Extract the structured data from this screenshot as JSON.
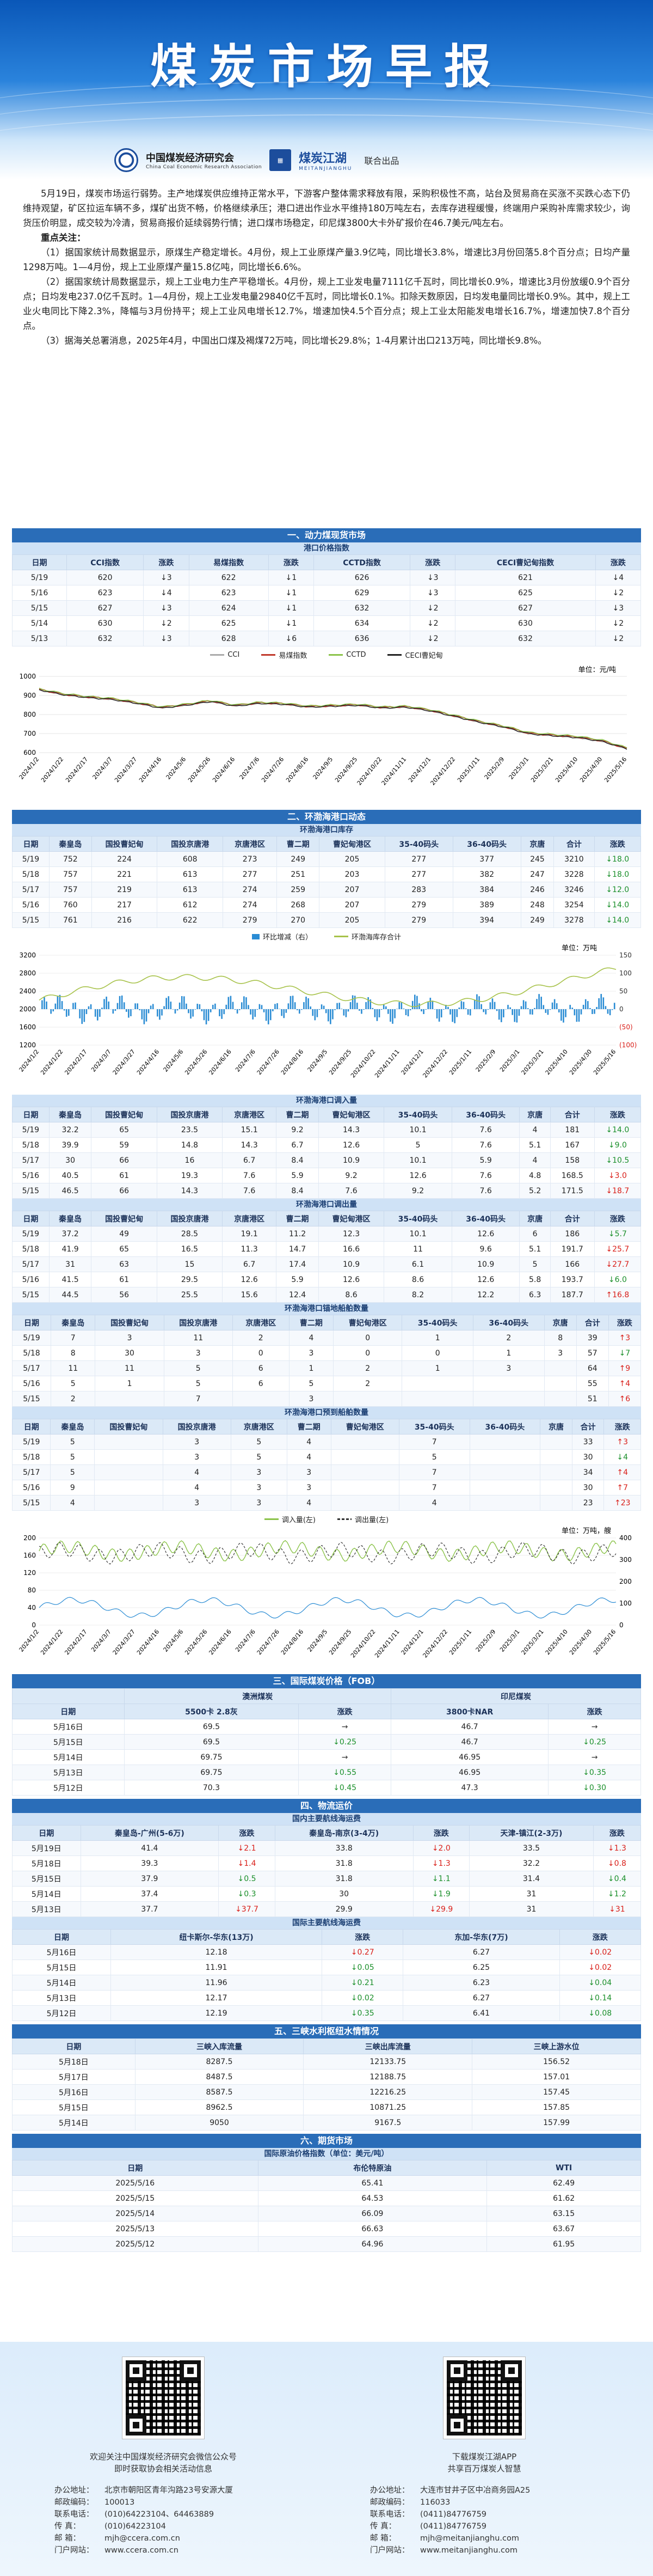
{
  "header": {
    "title": "煤炭市场早报",
    "org1_cn": "中国煤炭经济研究会",
    "org1_en": "China Coal Economic Research Association",
    "org2_cn": "煤炭江湖",
    "org2_en": "MEITANJIANGHU",
    "joint": "联合出品"
  },
  "summary": {
    "p1": "5月19日，煤炭市场运行弱势。主产地煤炭供应维持正常水平，下游客户整体需求释放有限，采购积极性不高，站台及贸易商在买涨不买跌心态下仍维持观望，矿区拉运车辆不多，煤矿出货不畅，价格继续承压；港口进出作业水平维持180万吨左右，去库存进程缓慢，终端用户采购补库需求较少，询货压价明显，成交较为冷清，贸易商报价延续弱势行情；进口煤市场稳定，印尼煤3800大卡外矿报价在46.7美元/吨左右。",
    "p2": "重点关注：",
    "p3": "（1）据国家统计局数据显示，原煤生产稳定增长。4月份，规上工业原煤产量3.9亿吨，同比增长3.8%，增速比3月份回落5.8个百分点；日均产量1298万吨。1—4月份，规上工业原煤产量15.8亿吨，同比增长6.6%。",
    "p4": "（2）据国家统计局数据显示，规上工业电力生产平稳增长。4月份，规上工业发电量7111亿千瓦时，同比增长0.9%，增速比3月份放缓0.9个百分点；日均发电237.0亿千瓦时。1—4月份，规上工业发电量29840亿千瓦时，同比增长0.1%。扣除天数原因，日均发电量同比增长0.9%。其中，规上工业火电同比下降2.3%，降幅与3月份持平；规上工业风电增长12.7%，增速加快4.5个百分点；规上工业太阳能发电增长16.7%，增速加快7.8个百分点。",
    "p5": "（3）据海关总署消息，2025年4月，中国出口煤及褐煤72万吨，同比增长29.8%；1-4月累计出口213万吨，同比增长9.8%。"
  },
  "s1": {
    "title": "一、动力煤现货市场",
    "sub": "港口价格指数",
    "cols": [
      "日期",
      "CCI指数",
      "涨跌",
      "易煤指数",
      "涨跌",
      "CCTD指数",
      "涨跌",
      "CECI曹妃甸指数",
      "涨跌"
    ],
    "rows": [
      [
        "5/19",
        "620",
        "↓3",
        "622",
        "↓1",
        "626",
        "↓3",
        "621",
        "↓4"
      ],
      [
        "5/16",
        "623",
        "↓4",
        "623",
        "↓1",
        "629",
        "↓3",
        "625",
        "↓2"
      ],
      [
        "5/15",
        "627",
        "↓3",
        "624",
        "↓1",
        "632",
        "↓2",
        "627",
        "↓3"
      ],
      [
        "5/14",
        "630",
        "↓2",
        "625",
        "↓1",
        "634",
        "↓2",
        "630",
        "↓2"
      ],
      [
        "5/13",
        "632",
        "↓3",
        "628",
        "↓6",
        "636",
        "↓2",
        "632",
        "↓2"
      ]
    ],
    "dirs": [
      [
        "dn",
        "dn",
        "dn",
        "dn"
      ],
      [
        "dn",
        "dn",
        "dn",
        "dn"
      ],
      [
        "dn",
        "dn",
        "dn",
        "dn"
      ],
      [
        "dn",
        "dn",
        "dn",
        "dn"
      ],
      [
        "dn",
        "dn",
        "dn",
        "dn"
      ]
    ]
  },
  "chart1": {
    "legend": [
      "CCI",
      "易煤指数",
      "CCTD",
      "CECI曹妃甸"
    ],
    "unit": "单位：元/吨",
    "colors": [
      "#aaaaaa",
      "#c0392b",
      "#8bc34a",
      "#222222"
    ],
    "yticks": [
      "1000",
      "900",
      "800",
      "700",
      "600"
    ],
    "xticks": [
      "2024/1/2",
      "2024/1/22",
      "2024/2/17",
      "2024/3/7",
      "2024/3/27",
      "2024/4/16",
      "2024/5/6",
      "2024/5/26",
      "2024/6/16",
      "2024/7/6",
      "2024/7/26",
      "2024/8/16",
      "2024/9/5",
      "2024/9/25",
      "2024/10/22",
      "2024/11/11",
      "2024/12/1",
      "2024/12/22",
      "2025/1/11",
      "2025/2/9",
      "2025/3/1",
      "2025/3/21",
      "2025/4/10",
      "2025/4/30",
      "2025/5/16"
    ]
  },
  "chart_data": {
    "type": "line",
    "title": "",
    "xlabel": "",
    "ylabel": "单位：元/吨",
    "ylim": [
      600,
      1000
    ],
    "series": [
      {
        "name": "CCI",
        "values": [
          930,
          905,
          890,
          880,
          860,
          835,
          850,
          870,
          845,
          860,
          855,
          840,
          845,
          850,
          835,
          840,
          820,
          790,
          760,
          735,
          700,
          690,
          680,
          660,
          620
        ]
      },
      {
        "name": "易煤指数",
        "values": [
          932,
          906,
          892,
          882,
          862,
          838,
          852,
          872,
          848,
          862,
          857,
          842,
          846,
          852,
          837,
          842,
          822,
          792,
          762,
          737,
          702,
          692,
          682,
          662,
          622
        ]
      },
      {
        "name": "CCTD",
        "values": [
          935,
          910,
          895,
          885,
          865,
          840,
          855,
          875,
          850,
          865,
          860,
          845,
          850,
          855,
          840,
          845,
          825,
          795,
          765,
          740,
          706,
          696,
          686,
          666,
          626
        ]
      },
      {
        "name": "CECI曹妃甸",
        "values": [
          930,
          904,
          889,
          879,
          859,
          834,
          849,
          869,
          844,
          859,
          854,
          839,
          844,
          849,
          834,
          839,
          819,
          789,
          759,
          734,
          699,
          689,
          679,
          659,
          621
        ]
      }
    ]
  },
  "s2": {
    "title": "二、环渤海港口动态",
    "sub": "环渤海港口库存",
    "cols": [
      "日期",
      "秦皇岛",
      "国投曹妃甸",
      "国投京唐港",
      "京唐港区",
      "曹二期",
      "曹妃甸港区",
      "35-40码头",
      "36-40码头",
      "京唐",
      "合计",
      "涨跌"
    ],
    "rows": [
      [
        "5/19",
        "752",
        "224",
        "608",
        "273",
        "249",
        "205",
        "277",
        "377",
        "245",
        "3210",
        "↓18.0"
      ],
      [
        "5/18",
        "757",
        "221",
        "613",
        "277",
        "251",
        "203",
        "277",
        "382",
        "247",
        "3228",
        "↓18.0"
      ],
      [
        "5/17",
        "757",
        "219",
        "613",
        "274",
        "259",
        "207",
        "283",
        "384",
        "246",
        "3246",
        "↓12.0"
      ],
      [
        "5/16",
        "760",
        "217",
        "612",
        "274",
        "268",
        "207",
        "279",
        "389",
        "248",
        "3254",
        "↓14.0"
      ],
      [
        "5/15",
        "761",
        "216",
        "622",
        "279",
        "270",
        "205",
        "279",
        "394",
        "249",
        "3278",
        "↓14.0"
      ]
    ],
    "dir": [
      "dn",
      "dn",
      "dn",
      "dn",
      "dn"
    ]
  },
  "chart2": {
    "legend": [
      "环比增减（右）",
      "环渤海库存合计"
    ],
    "unit": "单位：万吨",
    "lyt": [
      "3200",
      "2800",
      "2400",
      "2000",
      "1600",
      "1200"
    ],
    "ryt": [
      "150",
      "100",
      "50",
      "0",
      "(50)",
      "(100)"
    ]
  },
  "s3": {
    "title": "环渤海港口调入量",
    "cols": [
      "日期",
      "秦皇岛",
      "国投曹妃甸",
      "国投京唐港",
      "京唐港区",
      "曹二期",
      "曹妃甸港区",
      "35-40码头",
      "36-40码头",
      "京唐",
      "合计",
      "涨跌"
    ],
    "rows": [
      [
        "5/19",
        "32.2",
        "65",
        "23.5",
        "15.1",
        "9.2",
        "14.3",
        "10.1",
        "7.6",
        "4",
        "181",
        "↓14.0"
      ],
      [
        "5/18",
        "39.9",
        "59",
        "14.8",
        "14.3",
        "6.7",
        "12.6",
        "5",
        "7.6",
        "5.1",
        "167",
        "↓9.0"
      ],
      [
        "5/17",
        "30",
        "66",
        "16",
        "6.7",
        "8.4",
        "10.9",
        "10.1",
        "5.9",
        "4",
        "158",
        "↓10.5"
      ],
      [
        "5/16",
        "40.5",
        "61",
        "19.3",
        "7.6",
        "5.9",
        "9.2",
        "12.6",
        "7.6",
        "4.8",
        "168.5",
        "↓3.0"
      ],
      [
        "5/15",
        "46.5",
        "66",
        "14.3",
        "7.6",
        "8.4",
        "7.6",
        "9.2",
        "7.6",
        "5.2",
        "171.5",
        "↓18.7"
      ]
    ],
    "dir": [
      "dn",
      "dn",
      "dn",
      "up",
      "up"
    ]
  },
  "s4": {
    "title": "环渤海港口调出量",
    "cols": [
      "日期",
      "秦皇岛",
      "国投曹妃甸",
      "国投京唐港",
      "京唐港区",
      "曹二期",
      "曹妃甸港区",
      "35-40码头",
      "36-40码头",
      "京唐",
      "合计",
      "涨跌"
    ],
    "rows": [
      [
        "5/19",
        "37.2",
        "49",
        "28.5",
        "19.1",
        "11.2",
        "12.3",
        "10.1",
        "12.6",
        "6",
        "186",
        "↓5.7"
      ],
      [
        "5/18",
        "41.9",
        "65",
        "16.5",
        "11.3",
        "14.7",
        "16.6",
        "11",
        "9.6",
        "5.1",
        "191.7",
        "↓25.7"
      ],
      [
        "5/17",
        "31",
        "63",
        "15",
        "6.7",
        "17.4",
        "10.9",
        "6.1",
        "10.9",
        "5",
        "166",
        "↓27.7"
      ],
      [
        "5/16",
        "41.5",
        "61",
        "29.5",
        "12.6",
        "5.9",
        "12.6",
        "8.6",
        "12.6",
        "5.8",
        "193.7",
        "↓6.0"
      ],
      [
        "5/15",
        "44.5",
        "56",
        "25.5",
        "15.6",
        "12.4",
        "8.6",
        "8.2",
        "12.2",
        "6.3",
        "187.7",
        "↑16.8"
      ]
    ],
    "dir": [
      "dn",
      "up",
      "up",
      "dn",
      "up"
    ]
  },
  "s5": {
    "title": "环渤海港口锚地船舶数量",
    "cols": [
      "日期",
      "秦皇岛",
      "国投曹妃甸",
      "国投京唐港",
      "京唐港区",
      "曹二期",
      "曹妃甸港区",
      "35-40码头",
      "36-40码头",
      "京唐",
      "合计",
      "涨跌"
    ],
    "rows": [
      [
        "5/19",
        "7",
        "3",
        "11",
        "2",
        "4",
        "0",
        "1",
        "2",
        "8",
        "39",
        "↑3"
      ],
      [
        "5/18",
        "8",
        "30",
        "3",
        "0",
        "3",
        "0",
        "0",
        "1",
        "3",
        "57",
        "↓7"
      ],
      [
        "5/17",
        "11",
        "11",
        "5",
        "6",
        "1",
        "2",
        "1",
        "3",
        "",
        "64",
        "↑9"
      ],
      [
        "5/16",
        "5",
        "1",
        "5",
        "6",
        "5",
        "2",
        "",
        "",
        "",
        "55",
        "↑4"
      ],
      [
        "5/15",
        "2",
        "",
        "7",
        "",
        "3",
        "",
        "",
        "",
        "",
        "51",
        "↑6"
      ]
    ],
    "dir": [
      "up",
      "dn",
      "up",
      "up",
      "up"
    ]
  },
  "s6": {
    "title": "环渤海港口预到船舶数量",
    "cols": [
      "日期",
      "秦皇岛",
      "国投曹妃甸",
      "国投京唐港",
      "京唐港区",
      "曹二期",
      "曹妃甸港区",
      "35-40码头",
      "36-40码头",
      "京唐",
      "合计",
      "涨跌"
    ],
    "rows": [
      [
        "5/19",
        "5",
        "",
        "3",
        "5",
        "4",
        "",
        "7",
        "",
        "",
        "33",
        "↑3"
      ],
      [
        "5/18",
        "5",
        "",
        "3",
        "5",
        "4",
        "",
        "5",
        "",
        "",
        "30",
        "↓4"
      ],
      [
        "5/17",
        "5",
        "",
        "4",
        "3",
        "3",
        "",
        "7",
        "",
        "",
        "34",
        "↑4"
      ],
      [
        "5/16",
        "9",
        "",
        "4",
        "3",
        "3",
        "",
        "7",
        "",
        "",
        "30",
        "↑7"
      ],
      [
        "5/15",
        "4",
        "",
        "3",
        "3",
        "4",
        "",
        "4",
        "",
        "",
        "23",
        "↑23"
      ]
    ],
    "dir": [
      "up",
      "dn",
      "up",
      "up",
      "up"
    ]
  },
  "chart3": {
    "legend": [
      "调入量(左)",
      "调出量(左)"
    ],
    "unit": "单位：万吨，艘",
    "lyt": [
      "200",
      "160",
      "120",
      "80",
      "40",
      "0"
    ],
    "ryt": [
      "400",
      "300",
      "200",
      "100",
      "0"
    ]
  },
  "s7": {
    "title": "三、国际煤炭价格（FOB）",
    "gh1": "澳洲煤炭",
    "gh2": "印尼煤炭",
    "cols": [
      "日期",
      "5500卡 2.8灰",
      "涨跌",
      "3800卡NAR",
      "涨跌"
    ],
    "rows": [
      [
        "5月16日",
        "69.5",
        "→",
        "46.7",
        "→"
      ],
      [
        "5月15日",
        "69.5",
        "↓0.25",
        "46.7",
        "↓0.25"
      ],
      [
        "5月14日",
        "69.75",
        "→",
        "46.95",
        "→"
      ],
      [
        "5月13日",
        "69.75",
        "↓0.55",
        "46.95",
        "↓0.35"
      ],
      [
        "5月12日",
        "70.3",
        "↓0.45",
        "47.3",
        "↓0.30"
      ]
    ],
    "dir": [
      [
        "fl",
        "fl"
      ],
      [
        "dn",
        "dn"
      ],
      [
        "fl",
        "fl"
      ],
      [
        "dn",
        "dn"
      ],
      [
        "dn",
        "dn"
      ]
    ]
  },
  "s8": {
    "title": "四、物流运价",
    "sub": "国内主要航线海运费",
    "cols": [
      "日期",
      "秦皇岛-广州(5-6万)",
      "涨跌",
      "秦皇岛-南京(3-4万)",
      "涨跌",
      "天津-镇江(2-3万)",
      "涨跌"
    ],
    "rows": [
      [
        "5月19日",
        "41.4",
        "↓2.1",
        "33.8",
        "↓2.0",
        "33.5",
        "↓1.3"
      ],
      [
        "5月18日",
        "39.3",
        "↓1.4",
        "31.8",
        "↓1.3",
        "32.2",
        "↓0.8"
      ],
      [
        "5月15日",
        "37.9",
        "↓0.5",
        "31.8",
        "↓1.1",
        "31.4",
        "↓0.4"
      ],
      [
        "5月14日",
        "37.4",
        "↓0.3",
        "30",
        "↓1.9",
        "31",
        "↓1.2"
      ],
      [
        "5月13日",
        "37.7",
        "↓37.7",
        "29.9",
        "↓29.9",
        "31",
        "↓31"
      ]
    ],
    "dir": [
      [
        "up",
        "up",
        "up"
      ],
      [
        "up",
        "up",
        "up"
      ],
      [
        "dn",
        "dn",
        "dn"
      ],
      [
        "dn",
        "dn",
        "dn"
      ],
      [
        "up",
        "up",
        "up"
      ]
    ]
  },
  "s9": {
    "title": "国际主要航线海运费",
    "cols": [
      "日期",
      "纽卡斯尔-华东(13万)",
      "涨跌",
      "东加-华东(7万)",
      "涨跌"
    ],
    "rows": [
      [
        "5月16日",
        "12.18",
        "↓0.27",
        "6.27",
        "↓0.02"
      ],
      [
        "5月15日",
        "11.91",
        "↓0.05",
        "6.25",
        "↓0.02"
      ],
      [
        "5月14日",
        "11.96",
        "↓0.21",
        "6.23",
        "↓0.04"
      ],
      [
        "5月13日",
        "12.17",
        "↓0.02",
        "6.27",
        "↓0.14"
      ],
      [
        "5月12日",
        "12.19",
        "↓0.35",
        "6.41",
        "↓0.08"
      ]
    ],
    "dir": [
      [
        "up",
        "up"
      ],
      [
        "dn",
        "up"
      ],
      [
        "dn",
        "dn"
      ],
      [
        "dn",
        "dn"
      ],
      [
        "dn",
        "dn"
      ]
    ]
  },
  "s10": {
    "title": "五、三峡水利枢纽水情情况",
    "cols": [
      "日期",
      "三峡入库流量",
      "三峡出库流量",
      "三峡上游水位"
    ],
    "rows": [
      [
        "5月18日",
        "8287.5",
        "12133.75",
        "156.52"
      ],
      [
        "5月17日",
        "8487.5",
        "12188.75",
        "157.01"
      ],
      [
        "5月16日",
        "8587.5",
        "12216.25",
        "157.45"
      ],
      [
        "5月15日",
        "8962.5",
        "10871.25",
        "157.85"
      ],
      [
        "5月14日",
        "9050",
        "9167.5",
        "157.99"
      ]
    ]
  },
  "s11": {
    "title": "六、期货市场",
    "sub": "国际原油价格指数（单位：美元/吨）",
    "cols": [
      "日期",
      "布伦特原油",
      "WTI"
    ],
    "rows": [
      [
        "2025/5/16",
        "65.41",
        "62.49"
      ],
      [
        "2025/5/15",
        "64.53",
        "61.62"
      ],
      [
        "2025/5/14",
        "66.09",
        "63.15"
      ],
      [
        "2025/5/13",
        "66.63",
        "63.67"
      ],
      [
        "2025/5/12",
        "64.96",
        "61.95"
      ]
    ]
  },
  "footer": {
    "left_cap1": "欢迎关注中国煤炭经济研究会微信公众号",
    "left_cap2": "即时获取协会相关活动信息",
    "right_cap1": "下载煤炭江湖APP",
    "right_cap2": "共享百万煤炭人智慧",
    "left": [
      [
        "办公地址：",
        "北京市朝阳区青年沟路23号安源大厦"
      ],
      [
        "邮政编码：",
        "100013"
      ],
      [
        "联系电话：",
        "(010)64223104、64463889"
      ],
      [
        "传    真：",
        "(010)64223104"
      ],
      [
        "邮    箱：",
        "mjh@ccera.com.cn"
      ],
      [
        "门户网站：",
        "www.ccera.com.cn"
      ]
    ],
    "right": [
      [
        "办公地址：",
        "大连市甘井子区中冶商务园A25"
      ],
      [
        "邮政编码：",
        "116033"
      ],
      [
        "联系电话：",
        "(0411)84776759"
      ],
      [
        "传    真：",
        "(0411)84776759"
      ],
      [
        "邮    箱：",
        "mjh@meitanjianghu.com"
      ],
      [
        "门户网站：",
        "www.meitanjianghu.com"
      ]
    ]
  }
}
